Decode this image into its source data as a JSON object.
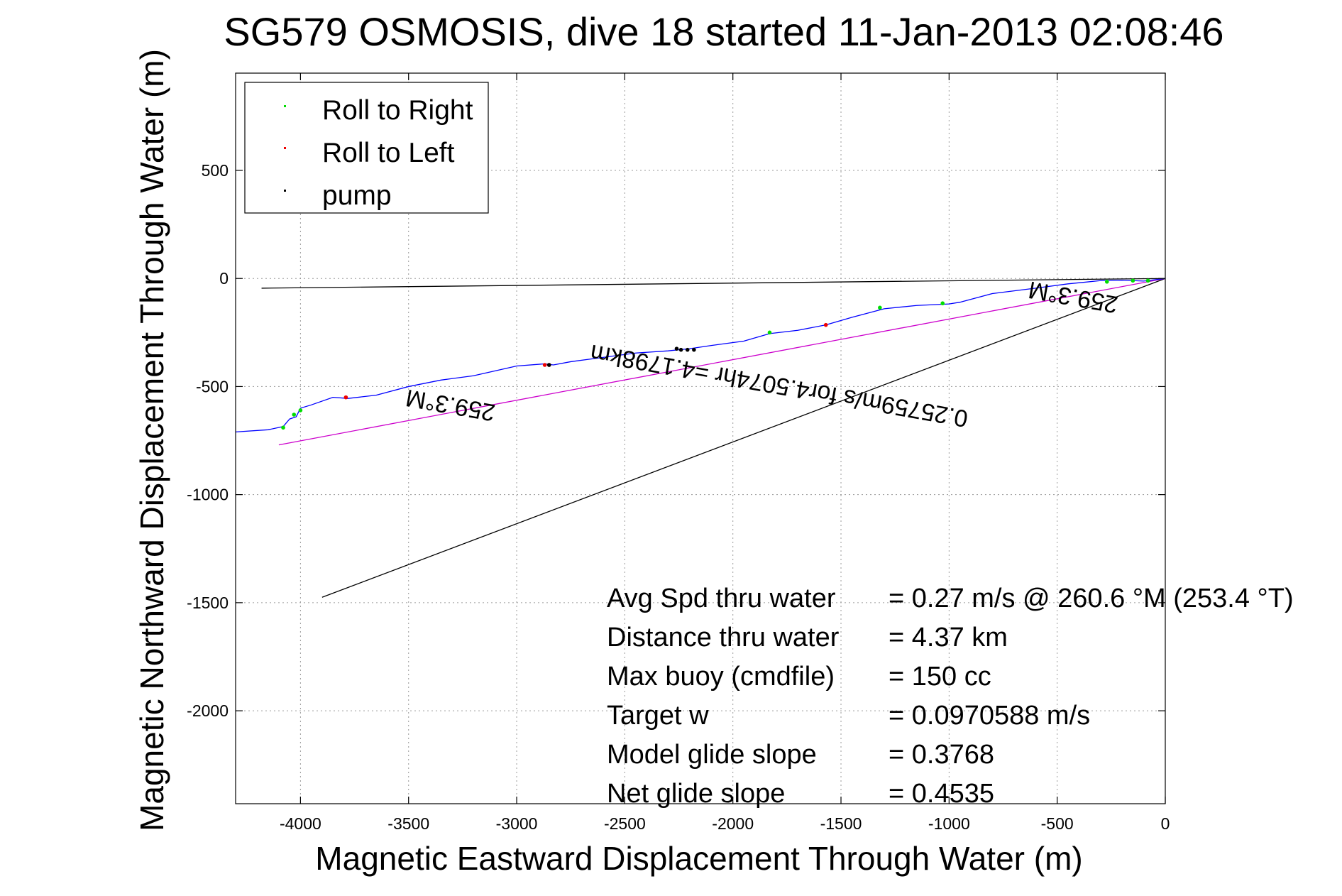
{
  "chart_data": {
    "type": "scatter",
    "title": "SG579 OSMOSIS, dive 18 started 11-Jan-2013 02:08:46",
    "xlabel": "Magnetic Eastward Displacement Through Water (m)",
    "ylabel": "Magnetic Northward Displacement Through Water (m)",
    "xlim": [
      -4300,
      0
    ],
    "ylim": [
      -2430,
      950
    ],
    "grid": true,
    "x_ticks": [
      -4000,
      -3500,
      -3000,
      -2500,
      -2000,
      -1500,
      -1000,
      -500,
      0
    ],
    "x_tick_labels": [
      "-4000",
      "-3500",
      "-3000",
      "-2500",
      "-2000",
      "-1500",
      "-1000",
      "-500",
      "0"
    ],
    "y_ticks": [
      500,
      0,
      -500,
      -1000,
      -1500,
      -2000
    ],
    "y_tick_labels": [
      "500",
      "0",
      "-500",
      "-1000",
      "-1500",
      "-2000"
    ],
    "legend": {
      "placement": "top-left",
      "entries": [
        {
          "label": "Roll to Right",
          "color": "#00dd00"
        },
        {
          "label": "Roll to Left",
          "color": "#ee0000"
        },
        {
          "label": "pump",
          "color": "#000000"
        }
      ]
    },
    "track": {
      "color": "#0000ff",
      "x": [
        0,
        -100,
        -200,
        -300,
        -450,
        -600,
        -800,
        -950,
        -1000,
        -1150,
        -1300,
        -1450,
        -1570,
        -1700,
        -1830,
        -1950,
        -2100,
        -2200,
        -2300,
        -2450,
        -2600,
        -2750,
        -2830,
        -2870,
        -3000,
        -3200,
        -3350,
        -3500,
        -3650,
        -3780,
        -3850,
        -3950,
        -4000,
        -4020,
        -4050,
        -4080,
        -4150,
        -4300
      ],
      "y": [
        0,
        -12,
        -8,
        -10,
        -25,
        -45,
        -70,
        -110,
        -118,
        -125,
        -140,
        -180,
        -215,
        -240,
        -255,
        -290,
        -310,
        -325,
        -335,
        -345,
        -365,
        -385,
        -400,
        -395,
        -405,
        -450,
        -470,
        -500,
        -540,
        -555,
        -550,
        -585,
        -600,
        -640,
        -650,
        -685,
        -700,
        -710
      ]
    },
    "roll_right_points": {
      "x": [
        -80,
        -150,
        -270,
        -1030,
        -1320,
        -1830,
        -4000,
        -4030,
        -4080
      ],
      "y": [
        -10,
        -10,
        -15,
        -115,
        -135,
        -250,
        -610,
        -630,
        -690
      ]
    },
    "roll_left_points": {
      "x": [
        -1570,
        -2870,
        -2850,
        -3790
      ],
      "y": [
        -215,
        -400,
        -400,
        -550
      ]
    },
    "pump_points": {
      "x": [
        -2180,
        -2210,
        -2240,
        -2260,
        -2850
      ],
      "y": [
        -330,
        -330,
        -330,
        -325,
        -400
      ]
    },
    "lines": [
      {
        "name": "",
        "color": "#000000",
        "x": [
          0,
          -4180
        ],
        "y": [
          0,
          -45
        ]
      },
      {
        "name": "",
        "color": "#000000",
        "x": [
          0,
          -3900
        ],
        "y": [
          0,
          -1475
        ]
      },
      {
        "name": "",
        "color": "#cc00cc",
        "x": [
          0,
          -4100
        ],
        "y": [
          0,
          -770
        ]
      }
    ],
    "annotations": [
      {
        "text": "259.3°M",
        "x": -3300,
        "y": -550,
        "rotation_deg": 190
      },
      {
        "text": "0.25759m/s for4.5074hr =4.1798km",
        "x": -1780,
        "y": -460,
        "rotation_deg": 190
      },
      {
        "text": "259.3°M",
        "x": -420,
        "y": -50,
        "rotation_deg": 190
      }
    ],
    "stats": [
      {
        "label": "Avg Spd thru water",
        "value": "=  0.27 m/s @ 260.6 °M (253.4 °T)"
      },
      {
        "label": "Distance thru water",
        "value": "=  4.37 km"
      },
      {
        "label": "Max buoy (cmdfile)",
        "value": "= 150 cc"
      },
      {
        "label": "Target w",
        "value": "= 0.0970588 m/s"
      },
      {
        "label": "Model glide slope",
        "value": "= 0.3768"
      },
      {
        "label": "Net glide slope",
        "value": "= 0.4535"
      }
    ]
  }
}
